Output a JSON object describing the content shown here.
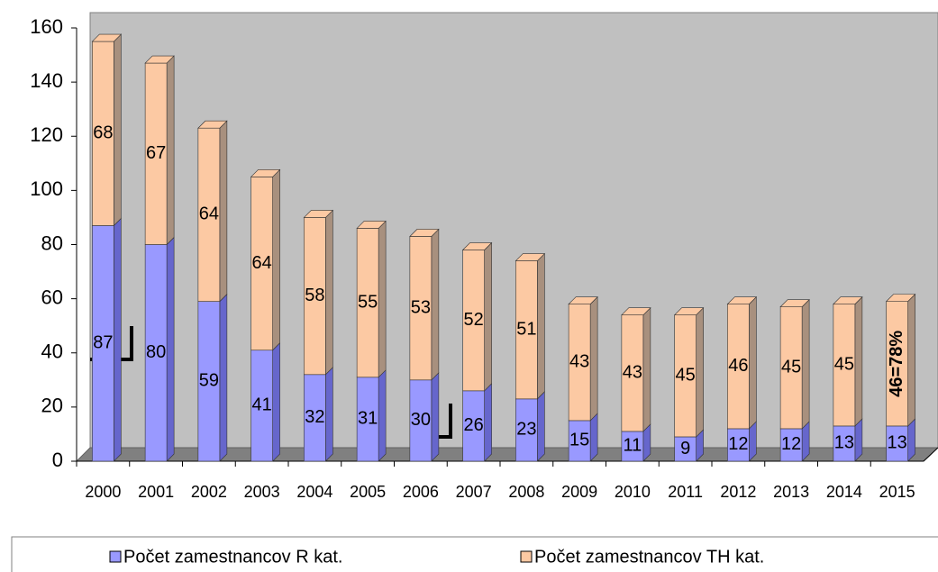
{
  "chart_data": {
    "type": "bar",
    "stacked": true,
    "categories": [
      "2000",
      "2001",
      "2002",
      "2003",
      "2004",
      "2005",
      "2006",
      "2007",
      "2008",
      "2009",
      "2010",
      "2011",
      "2012",
      "2013",
      "2014",
      "2015"
    ],
    "series": [
      {
        "name": "Počet zamestnancov R kat.",
        "color": "#9999ff",
        "side_color": "#6666cc",
        "values": [
          87,
          80,
          59,
          41,
          32,
          31,
          30,
          26,
          23,
          15,
          11,
          9,
          12,
          12,
          13,
          13
        ]
      },
      {
        "name": "Počet zamestnancov TH kat.",
        "color": "#fcc9a3",
        "side_color": "#a8907e",
        "values": [
          68,
          67,
          64,
          64,
          58,
          55,
          53,
          52,
          51,
          43,
          43,
          45,
          46,
          45,
          45,
          46
        ],
        "value_labels": [
          "68",
          "67",
          "64",
          "64",
          "58",
          "55",
          "53",
          "52",
          "51",
          "43",
          "43",
          "45",
          "46",
          "45",
          "45",
          "46=78%"
        ]
      }
    ],
    "ylim": [
      0,
      160
    ],
    "yticks": [
      0,
      20,
      40,
      60,
      80,
      100,
      120,
      140,
      160
    ],
    "legend": "bottom"
  }
}
